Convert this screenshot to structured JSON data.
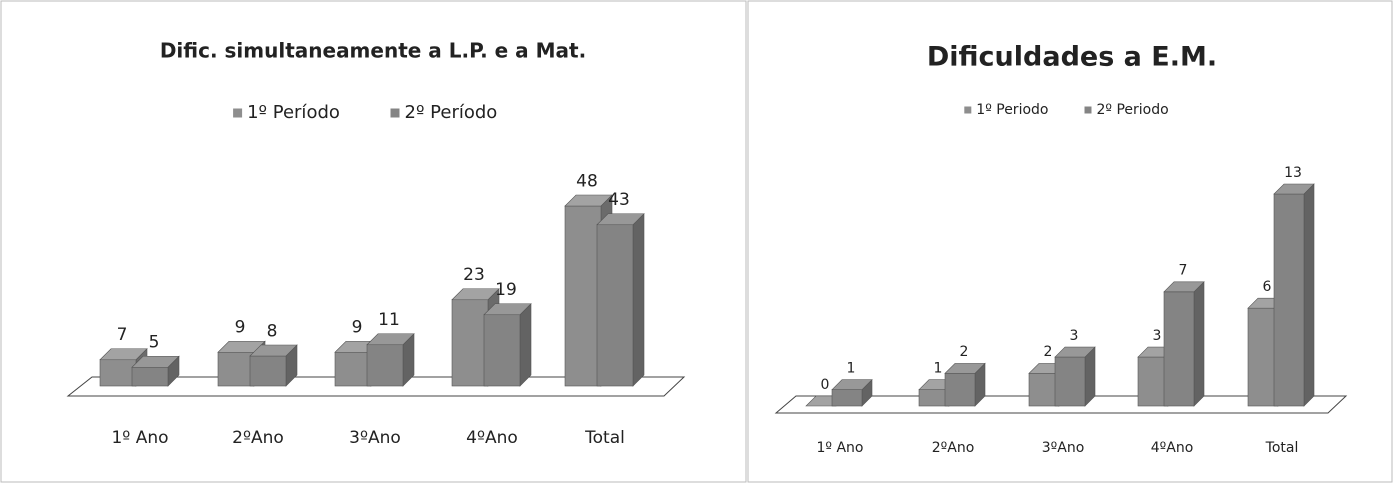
{
  "chart_data": [
    {
      "type": "bar3d",
      "title": "Dific. simultaneamente  a L.P. e a Mat.",
      "categories": [
        "1º Ano",
        "2ºAno",
        "3ºAno",
        "4ºAno",
        "Total"
      ],
      "series": [
        {
          "name": "1º Período",
          "color": "#8e8e8e",
          "values": [
            7,
            9,
            9,
            23,
            48
          ]
        },
        {
          "name": "2º Período",
          "color": "#848484",
          "values": [
            5,
            8,
            11,
            19,
            43
          ]
        }
      ]
    },
    {
      "type": "bar3d",
      "title": "Dificuldades a E.M.",
      "categories": [
        "1º Ano",
        "2ºAno",
        "3ºAno",
        "4ºAno",
        "Total"
      ],
      "series": [
        {
          "name": "1º Periodo",
          "color": "#8e8e8e",
          "values": [
            0,
            1,
            2,
            3,
            6
          ]
        },
        {
          "name": "2º Periodo",
          "color": "#848484",
          "values": [
            1,
            2,
            3,
            7,
            13
          ]
        }
      ]
    }
  ]
}
